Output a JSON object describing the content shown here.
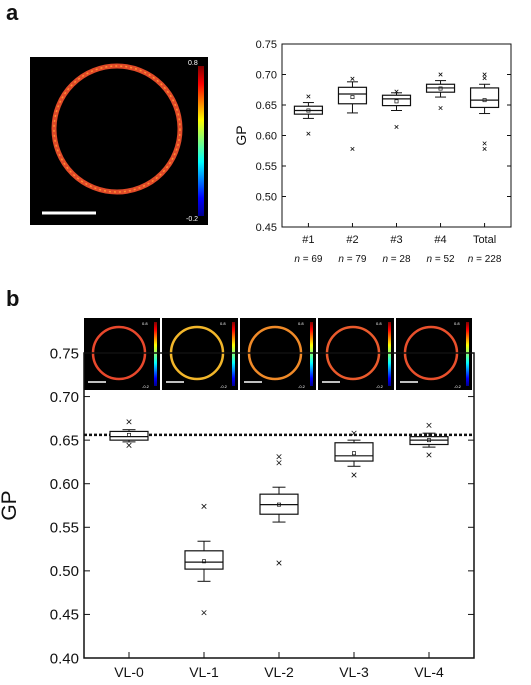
{
  "panels": {
    "a_label": "a",
    "b_label": "b"
  },
  "panel_a_image": {
    "colorbar_max": "0.8",
    "colorbar_min": "-0.2"
  },
  "panel_b_thumbs": [
    {
      "colorbar_max": "0.8",
      "colorbar_min": "-0.2",
      "ring_color": "#e8482c"
    },
    {
      "colorbar_max": "0.8",
      "colorbar_min": "-0.2",
      "ring_color": "#f2b62a"
    },
    {
      "colorbar_max": "0.8",
      "colorbar_min": "-0.2",
      "ring_color": "#f08a28"
    },
    {
      "colorbar_max": "0.8",
      "colorbar_min": "-0.2",
      "ring_color": "#ea5a2c"
    },
    {
      "colorbar_max": "0.8",
      "colorbar_min": "-0.2",
      "ring_color": "#e9502c"
    }
  ],
  "chart_data": [
    {
      "type": "box",
      "panel": "a",
      "ylabel": "GP",
      "ylim": [
        0.45,
        0.75
      ],
      "yticks": [
        0.45,
        0.5,
        0.55,
        0.6,
        0.65,
        0.7,
        0.75
      ],
      "categories": [
        "#1",
        "#2",
        "#3",
        "#4",
        "Total"
      ],
      "sublabels": [
        "n = 69",
        "n = 79",
        "n = 28",
        "n = 52",
        "n = 228"
      ],
      "boxes": [
        {
          "q1": 0.635,
          "median": 0.641,
          "q3": 0.648,
          "mean": 0.641,
          "whisker_low": 0.628,
          "whisker_high": 0.654,
          "outliers": [
            0.603,
            0.664
          ]
        },
        {
          "q1": 0.652,
          "median": 0.668,
          "q3": 0.679,
          "mean": 0.663,
          "whisker_low": 0.637,
          "whisker_high": 0.688,
          "outliers": [
            0.578,
            0.693
          ]
        },
        {
          "q1": 0.649,
          "median": 0.66,
          "q3": 0.666,
          "mean": 0.656,
          "whisker_low": 0.641,
          "whisker_high": 0.67,
          "outliers": [
            0.614,
            0.672
          ]
        },
        {
          "q1": 0.671,
          "median": 0.678,
          "q3": 0.684,
          "mean": 0.677,
          "whisker_low": 0.663,
          "whisker_high": 0.69,
          "outliers": [
            0.645,
            0.7
          ]
        },
        {
          "q1": 0.646,
          "median": 0.658,
          "q3": 0.678,
          "mean": 0.658,
          "whisker_low": 0.636,
          "whisker_high": 0.684,
          "outliers": [
            0.578,
            0.587,
            0.694,
            0.7
          ]
        }
      ]
    },
    {
      "type": "box",
      "panel": "b",
      "ylabel": "GP",
      "ylim": [
        0.4,
        0.75
      ],
      "yticks": [
        0.4,
        0.45,
        0.5,
        0.55,
        0.6,
        0.65,
        0.7,
        0.75
      ],
      "categories": [
        "VL-0",
        "VL-1",
        "VL-2",
        "VL-3",
        "VL-4"
      ],
      "reference_line": 0.656,
      "boxes": [
        {
          "q1": 0.65,
          "median": 0.654,
          "q3": 0.66,
          "mean": 0.656,
          "whisker_low": 0.648,
          "whisker_high": 0.662,
          "outliers": [
            0.644,
            0.671
          ]
        },
        {
          "q1": 0.502,
          "median": 0.51,
          "q3": 0.523,
          "mean": 0.511,
          "whisker_low": 0.488,
          "whisker_high": 0.534,
          "outliers": [
            0.452,
            0.574
          ]
        },
        {
          "q1": 0.565,
          "median": 0.576,
          "q3": 0.588,
          "mean": 0.576,
          "whisker_low": 0.556,
          "whisker_high": 0.596,
          "outliers": [
            0.509,
            0.624,
            0.631
          ]
        },
        {
          "q1": 0.626,
          "median": 0.632,
          "q3": 0.647,
          "mean": 0.635,
          "whisker_low": 0.62,
          "whisker_high": 0.65,
          "outliers": [
            0.61,
            0.658
          ]
        },
        {
          "q1": 0.645,
          "median": 0.65,
          "q3": 0.654,
          "mean": 0.65,
          "whisker_low": 0.642,
          "whisker_high": 0.658,
          "outliers": [
            0.633,
            0.667
          ]
        }
      ]
    }
  ]
}
